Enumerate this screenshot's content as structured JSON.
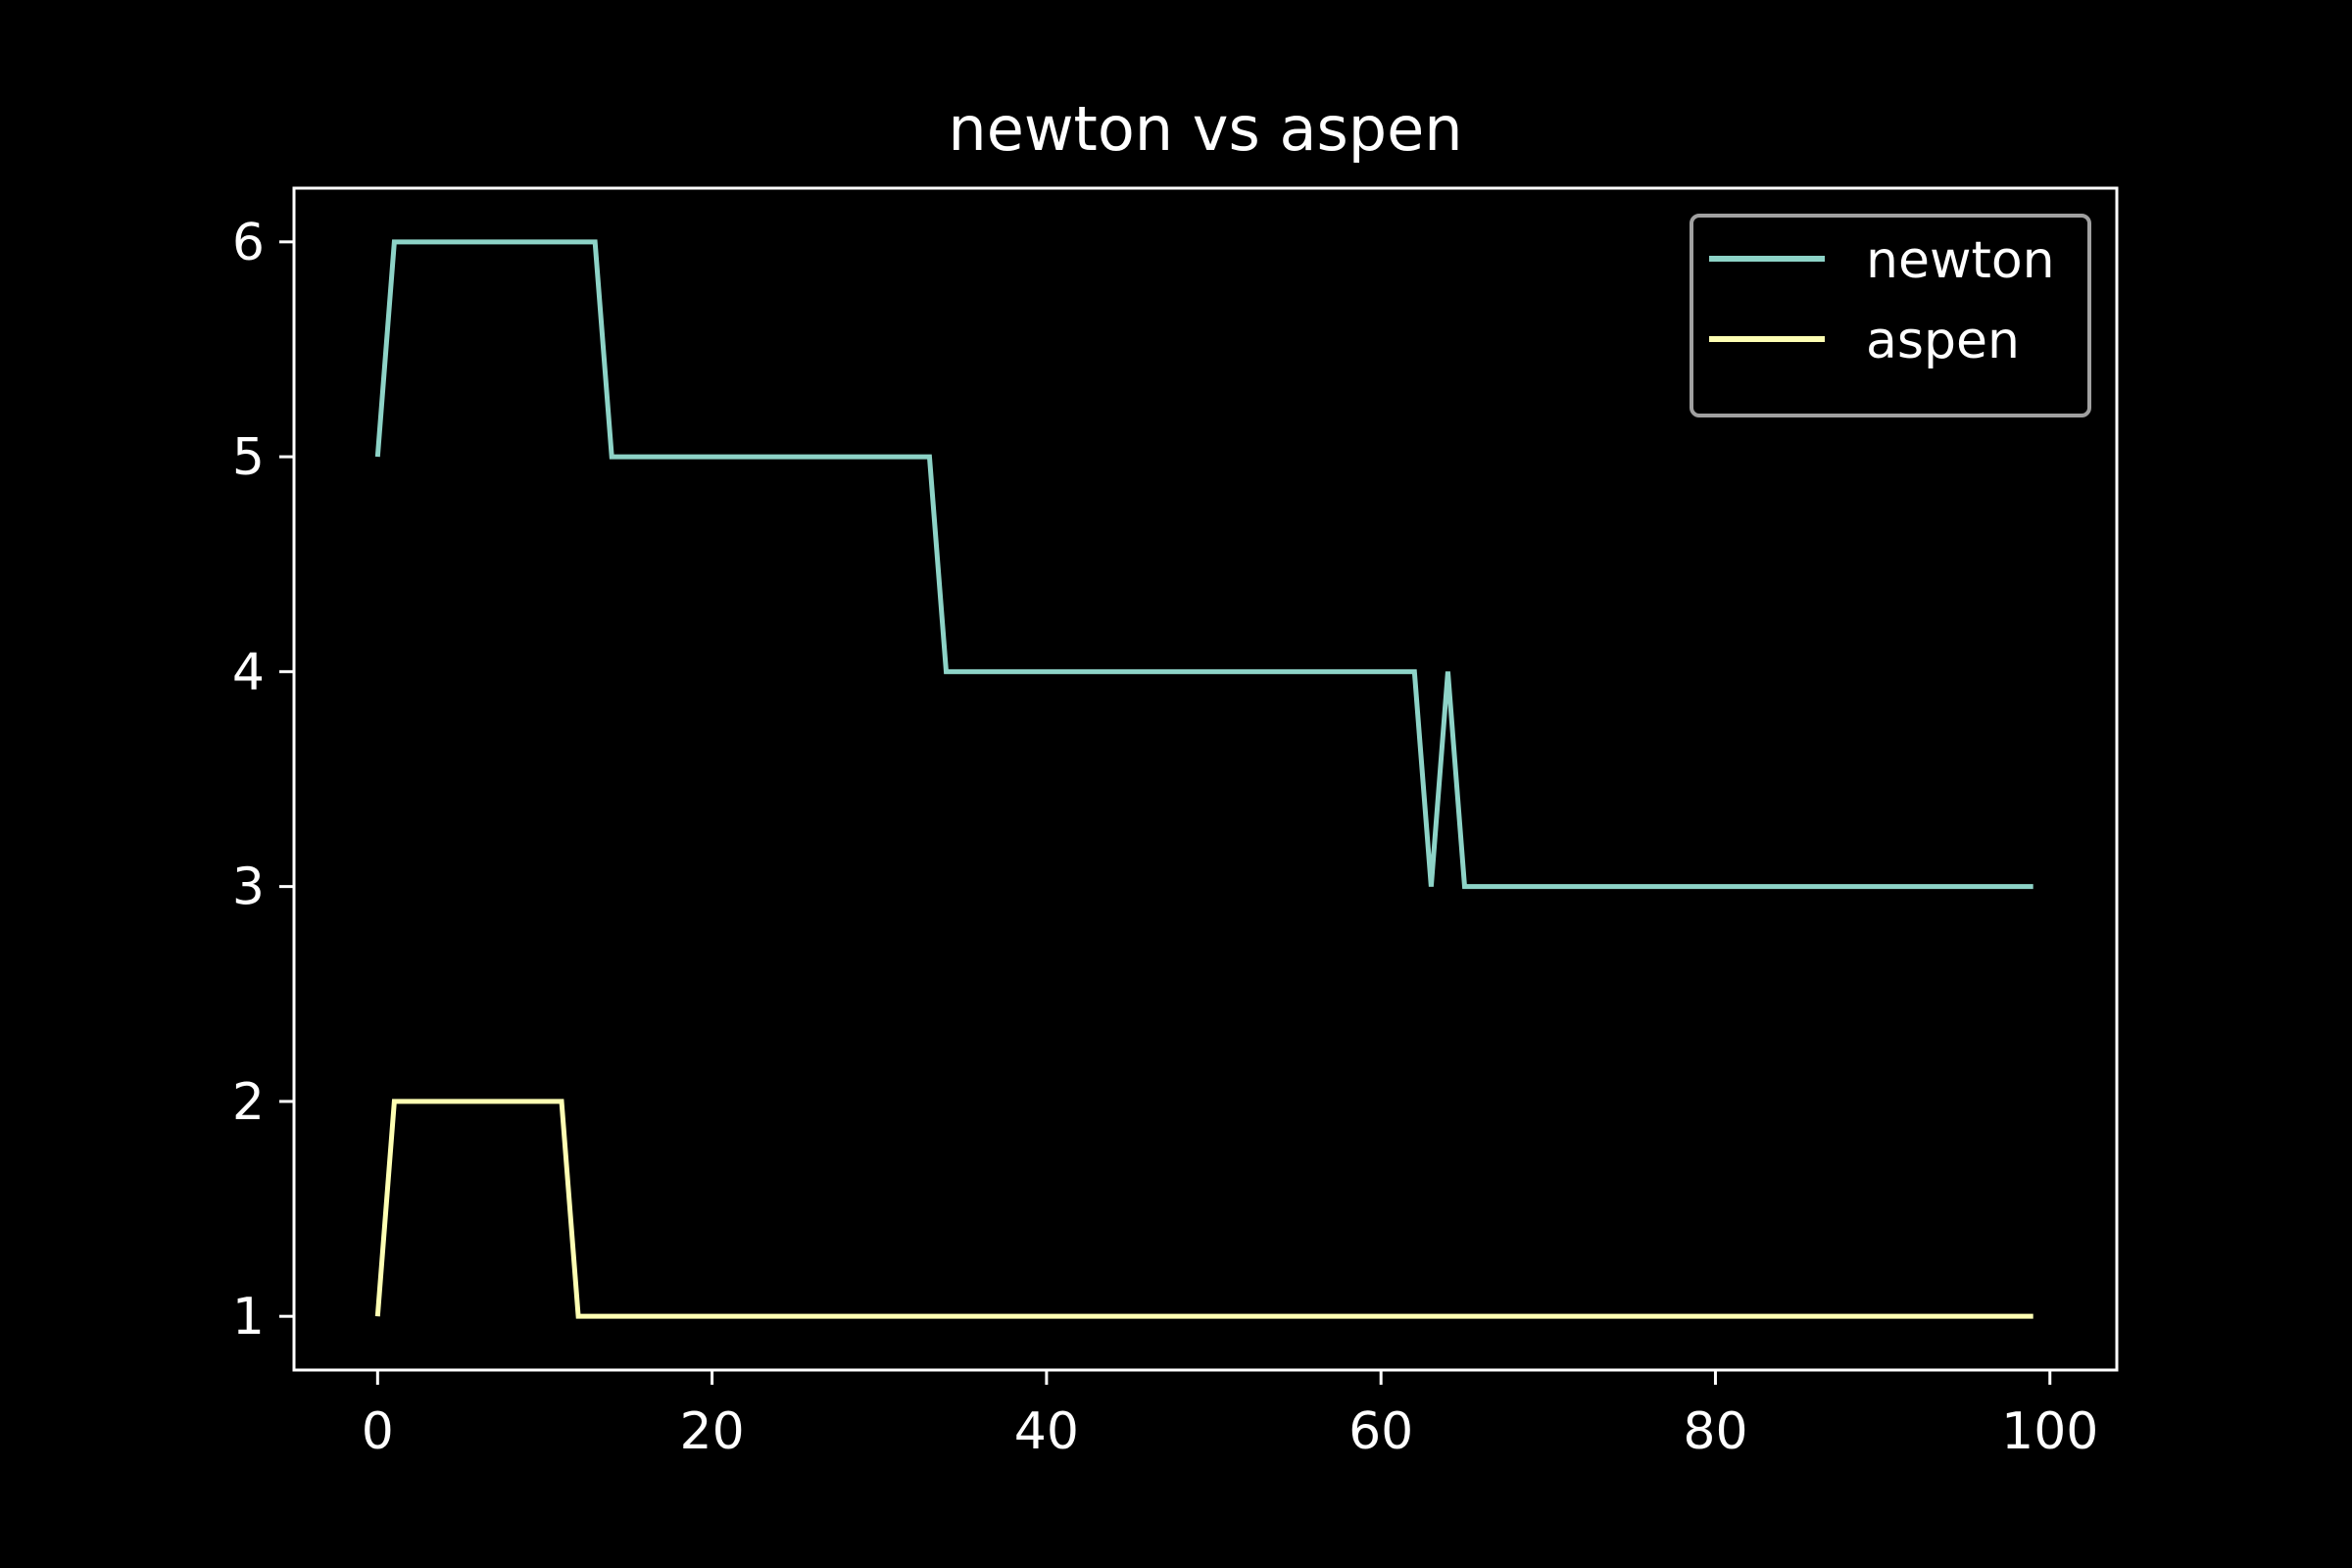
{
  "chart_data": {
    "type": "line",
    "title": "newton vs aspen",
    "xlabel": "",
    "ylabel": "",
    "xlim": [
      -5,
      104
    ],
    "ylim": [
      0.75,
      6.25
    ],
    "xticks": [
      0,
      20,
      40,
      60,
      80,
      100
    ],
    "yticks": [
      1,
      2,
      3,
      4,
      5,
      6
    ],
    "grid": false,
    "legend_position": "top-right",
    "background": "#000000",
    "foreground": "#ffffff",
    "series": [
      {
        "name": "newton",
        "color": "#8dd3c7",
        "points": [
          [
            0,
            5
          ],
          [
            1,
            6
          ],
          [
            13,
            6
          ],
          [
            14,
            5
          ],
          [
            33,
            5
          ],
          [
            34,
            4
          ],
          [
            62,
            4
          ],
          [
            63,
            3
          ],
          [
            64,
            4
          ],
          [
            65,
            3
          ],
          [
            99,
            3
          ]
        ]
      },
      {
        "name": "aspen",
        "color": "#feffb3",
        "points": [
          [
            0,
            1
          ],
          [
            1,
            2
          ],
          [
            11,
            2
          ],
          [
            12,
            1
          ],
          [
            99,
            1
          ]
        ]
      }
    ]
  }
}
